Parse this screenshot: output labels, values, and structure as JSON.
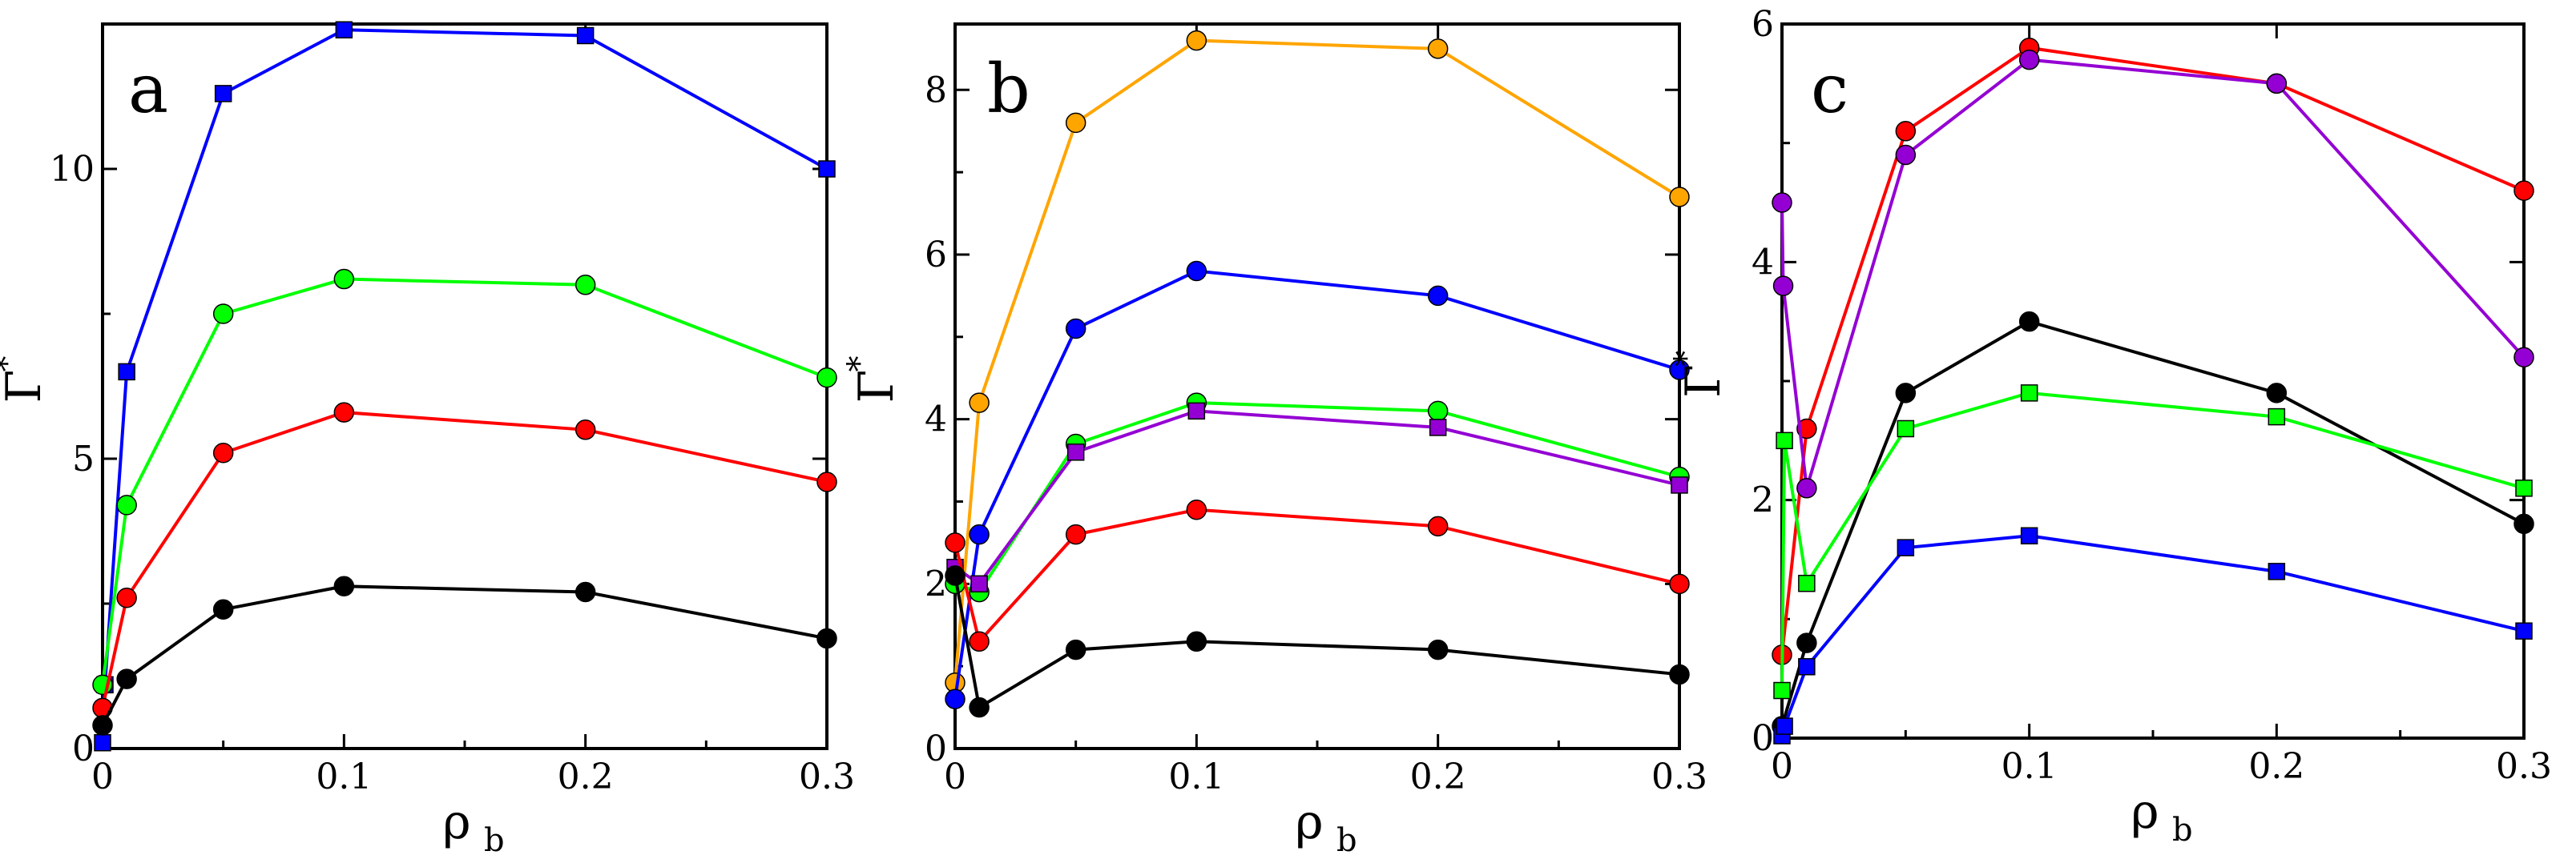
{
  "chart_data": [
    {
      "type": "line",
      "panel_label": "a",
      "xlabel": "ρ",
      "xlabel_sub": "b",
      "ylabel": "Γ",
      "ylabel_sup": "*",
      "xlim": [
        0,
        0.3
      ],
      "ylim": [
        0,
        12.5
      ],
      "xticks": [
        0,
        0.1,
        0.2,
        0.3
      ],
      "xtick_labels": [
        "0",
        "0.1",
        "0.2",
        "0.3"
      ],
      "yticks": [
        0,
        5,
        10
      ],
      "ytick_labels": [
        "0",
        "5",
        "10"
      ],
      "series": [
        {
          "name": "blue",
          "color": "#0000ff",
          "marker": "square",
          "x": [
            0,
            0.001,
            0.01,
            0.05,
            0.1,
            0.2,
            0.3
          ],
          "y": [
            0.1,
            1.1,
            6.5,
            11.3,
            12.4,
            12.3,
            10.0
          ]
        },
        {
          "name": "green",
          "color": "#00ff00",
          "marker": "circle",
          "x": [
            0,
            0.01,
            0.05,
            0.1,
            0.2,
            0.3
          ],
          "y": [
            1.1,
            4.2,
            7.5,
            8.1,
            8.0,
            6.4
          ]
        },
        {
          "name": "red",
          "color": "#ff0000",
          "marker": "circle",
          "x": [
            0,
            0.01,
            0.05,
            0.1,
            0.2,
            0.3
          ],
          "y": [
            0.7,
            2.6,
            5.1,
            5.8,
            5.5,
            4.6
          ]
        },
        {
          "name": "black",
          "color": "#000000",
          "marker": "circle",
          "x": [
            0,
            0.01,
            0.05,
            0.1,
            0.2,
            0.3
          ],
          "y": [
            0.4,
            1.2,
            2.4,
            2.8,
            2.7,
            1.9
          ]
        }
      ]
    },
    {
      "type": "line",
      "panel_label": "b",
      "xlabel": "ρ",
      "xlabel_sub": "b",
      "ylabel": "Γ",
      "ylabel_sup": "*",
      "xlim": [
        0,
        0.3
      ],
      "ylim": [
        0,
        8.8
      ],
      "xticks": [
        0,
        0.1,
        0.2,
        0.3
      ],
      "xtick_labels": [
        "0",
        "0.1",
        "0.2",
        "0.3"
      ],
      "yticks": [
        0,
        2,
        4,
        6,
        8
      ],
      "ytick_labels": [
        "0",
        "2",
        "4",
        "6",
        "8"
      ],
      "series": [
        {
          "name": "orange",
          "color": "#ffa500",
          "marker": "circle",
          "x": [
            0,
            0.01,
            0.05,
            0.1,
            0.2,
            0.3
          ],
          "y": [
            0.8,
            4.2,
            7.6,
            8.6,
            8.5,
            6.7
          ]
        },
        {
          "name": "blue",
          "color": "#0000ff",
          "marker": "circle",
          "x": [
            0,
            0.01,
            0.05,
            0.1,
            0.2,
            0.3
          ],
          "y": [
            0.6,
            2.6,
            5.1,
            5.8,
            5.5,
            4.6
          ]
        },
        {
          "name": "green",
          "color": "#00ff00",
          "marker": "circle",
          "x": [
            0,
            0.01,
            0.05,
            0.1,
            0.2,
            0.3
          ],
          "y": [
            2.0,
            1.9,
            3.7,
            4.2,
            4.1,
            3.3
          ]
        },
        {
          "name": "purple",
          "color": "#9400d3",
          "marker": "square",
          "x": [
            0,
            0.01,
            0.05,
            0.1,
            0.2,
            0.3
          ],
          "y": [
            2.2,
            2.0,
            3.6,
            4.1,
            3.9,
            3.2
          ]
        },
        {
          "name": "red",
          "color": "#ff0000",
          "marker": "circle",
          "x": [
            0,
            0.01,
            0.05,
            0.1,
            0.2,
            0.3
          ],
          "y": [
            2.5,
            1.3,
            2.6,
            2.9,
            2.7,
            2.0
          ]
        },
        {
          "name": "black",
          "color": "#000000",
          "marker": "circle",
          "x": [
            0,
            0.01,
            0.05,
            0.1,
            0.2,
            0.3
          ],
          "y": [
            2.1,
            0.5,
            1.2,
            1.3,
            1.2,
            0.9
          ]
        }
      ]
    },
    {
      "type": "line",
      "panel_label": "c",
      "xlabel": "ρ",
      "xlabel_sub": "b",
      "ylabel": "Γ",
      "ylabel_sup": "*",
      "xlim": [
        0,
        0.3
      ],
      "ylim": [
        0,
        6
      ],
      "xticks": [
        0,
        0.1,
        0.2,
        0.3
      ],
      "xtick_labels": [
        "0",
        "0.1",
        "0.2",
        "0.3"
      ],
      "yticks": [
        0,
        2,
        4,
        6
      ],
      "ytick_labels": [
        "0",
        "2",
        "4",
        "6"
      ],
      "series": [
        {
          "name": "red",
          "color": "#ff0000",
          "marker": "circle",
          "x": [
            0,
            0.01,
            0.05,
            0.1,
            0.2,
            0.3
          ],
          "y": [
            0.7,
            2.6,
            5.1,
            5.8,
            5.5,
            4.6
          ]
        },
        {
          "name": "purple",
          "color": "#9400d3",
          "marker": "circle",
          "x": [
            0,
            0.0005,
            0.01,
            0.05,
            0.1,
            0.2,
            0.3
          ],
          "y": [
            4.5,
            3.8,
            2.1,
            4.9,
            5.7,
            5.5,
            3.2
          ]
        },
        {
          "name": "black",
          "color": "#000000",
          "marker": "circle",
          "x": [
            0,
            0.01,
            0.05,
            0.1,
            0.2,
            0.3
          ],
          "y": [
            0.1,
            0.8,
            2.9,
            3.5,
            2.9,
            1.8
          ]
        },
        {
          "name": "green",
          "color": "#00ff00",
          "marker": "square",
          "x": [
            0,
            0.001,
            0.01,
            0.05,
            0.1,
            0.2,
            0.3
          ],
          "y": [
            0.4,
            2.5,
            1.3,
            2.6,
            2.9,
            2.7,
            2.1
          ]
        },
        {
          "name": "blue",
          "color": "#0000ff",
          "marker": "square",
          "x": [
            0,
            0.001,
            0.01,
            0.05,
            0.1,
            0.2,
            0.3
          ],
          "y": [
            0.02,
            0.1,
            0.6,
            1.6,
            1.7,
            1.4,
            0.9
          ]
        }
      ]
    }
  ]
}
